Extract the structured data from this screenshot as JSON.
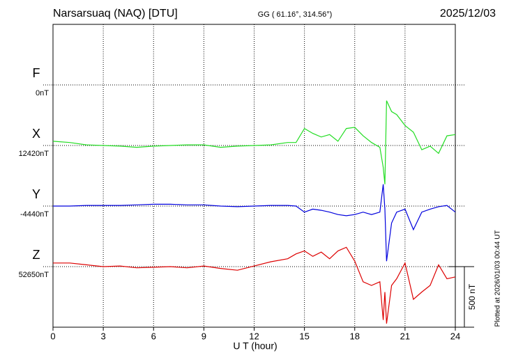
{
  "chart_data": {
    "type": "magnetogram",
    "title": "Narsarsuaq (NAQ)  [DTU]",
    "subtitle": "GG ( 61.16°, 314.56°)",
    "date": "2025/12/03",
    "x_label": "U T (hour)",
    "note": "Plotted at 2026/01/03 00:44 UT",
    "xlim": [
      0,
      24
    ],
    "xticks": [
      0,
      3,
      6,
      9,
      12,
      15,
      18,
      21,
      24
    ],
    "grid": true,
    "scale_bar": {
      "value": 500,
      "label": "500 nT"
    },
    "x": [
      0,
      1,
      2,
      3,
      4,
      5,
      6,
      7,
      8,
      9,
      10,
      11,
      12,
      13,
      14,
      14.5,
      15,
      15.5,
      16,
      16.5,
      17,
      17.5,
      18,
      18.5,
      19,
      19.5,
      19.7,
      19.8,
      19.9,
      20.2,
      20.5,
      21,
      21.5,
      22,
      22.5,
      23,
      23.5,
      24
    ],
    "series": [
      {
        "name": "F",
        "color": "#f5a800",
        "baseline": {
          "value": 0,
          "label": "0nT"
        }
      },
      {
        "name": "X",
        "color": "#22dd22",
        "baseline": {
          "value": 12420,
          "label": "12420nT"
        },
        "values": [
          12455,
          12445,
          12425,
          12420,
          12415,
          12405,
          12415,
          12420,
          12425,
          12425,
          12405,
          12415,
          12420,
          12425,
          12445,
          12445,
          12560,
          12520,
          12490,
          12510,
          12455,
          12560,
          12570,
          12500,
          12445,
          12405,
          12240,
          12100,
          12790,
          12700,
          12675,
          12585,
          12530,
          12385,
          12415,
          12355,
          12500,
          12510
        ]
      },
      {
        "name": "Y",
        "color": "#0000dd",
        "baseline": {
          "value": -4440,
          "label": "-4440nT"
        },
        "values": [
          -4440,
          -4440,
          -4435,
          -4435,
          -4435,
          -4430,
          -4425,
          -4425,
          -4430,
          -4430,
          -4440,
          -4445,
          -4440,
          -4435,
          -4435,
          -4440,
          -4490,
          -4465,
          -4475,
          -4490,
          -4510,
          -4520,
          -4510,
          -4490,
          -4510,
          -4490,
          -4260,
          -4465,
          -4895,
          -4580,
          -4490,
          -4465,
          -4635,
          -4490,
          -4465,
          -4445,
          -4435,
          -4490
        ]
      },
      {
        "name": "Z",
        "color": "#dd0000",
        "baseline": {
          "value": 52650,
          "label": "52650nT"
        },
        "values": [
          52680,
          52680,
          52665,
          52650,
          52655,
          52640,
          52645,
          52650,
          52640,
          52655,
          52635,
          52620,
          52655,
          52690,
          52715,
          52755,
          52780,
          52735,
          52770,
          52715,
          52780,
          52810,
          52695,
          52525,
          52495,
          52525,
          52210,
          52440,
          52180,
          52495,
          52550,
          52680,
          52380,
          52440,
          52495,
          52665,
          52550,
          52565
        ]
      }
    ]
  }
}
